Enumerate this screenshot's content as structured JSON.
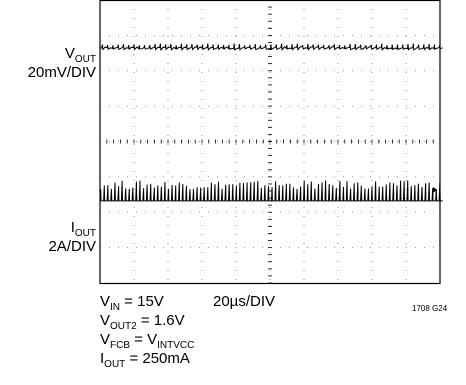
{
  "chart_data": {
    "type": "line",
    "title": "",
    "grid": true,
    "xlabel": "20µs/DIV",
    "x_divisions": 10,
    "y_divisions": 8,
    "series": [
      {
        "name_main": "V",
        "name_sub": "OUT",
        "scale": "20mV/DIV",
        "description": "output voltage ripple, small repeating spikes",
        "baseline_div_from_top": 1.35,
        "spike_period_div": 0.155,
        "spike_amplitude_div": 0.12
      },
      {
        "name_main": "I",
        "name_sub": "OUT",
        "scale": "2A/DIV",
        "description": "inductor current pulses",
        "baseline_div_from_top": 5.65,
        "spike_period_div": 0.105,
        "spike_amplitude_div": 0.55
      }
    ],
    "conditions": [
      {
        "parts": [
          {
            "t": "V"
          },
          {
            "s": "IN"
          },
          {
            "t": " = 15V"
          }
        ]
      },
      {
        "parts": [
          {
            "t": "V"
          },
          {
            "s": "OUT2"
          },
          {
            "t": " = 1.6V"
          }
        ]
      },
      {
        "parts": [
          {
            "t": "V"
          },
          {
            "s": "FCB"
          },
          {
            "t": " = V"
          },
          {
            "s": "INTVCC"
          }
        ]
      },
      {
        "parts": [
          {
            "t": "I"
          },
          {
            "s": "OUT"
          },
          {
            "t": " = 250mA"
          }
        ]
      }
    ],
    "figure_id": "1708 G24"
  }
}
